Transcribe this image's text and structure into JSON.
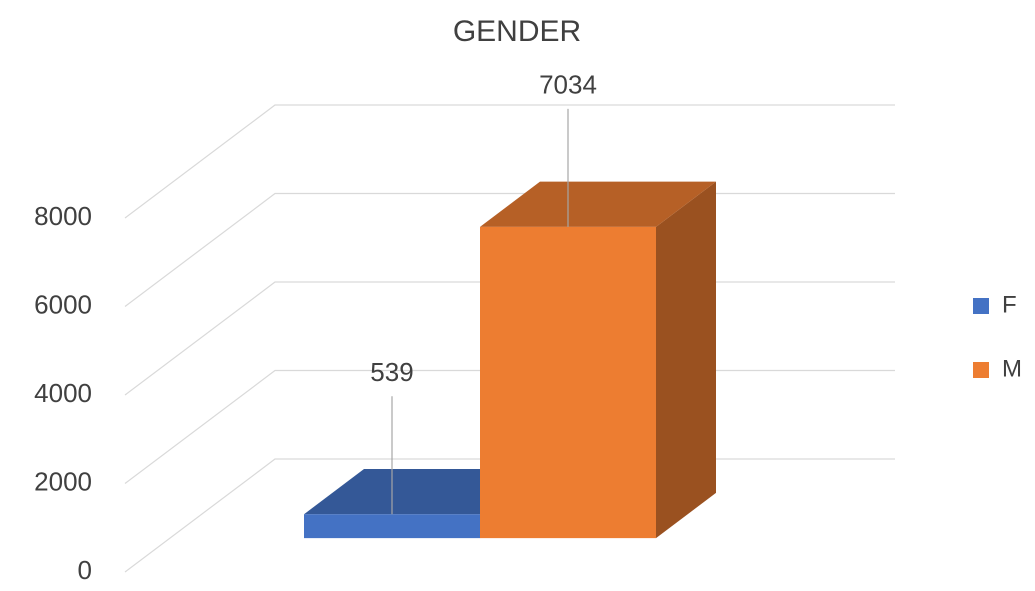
{
  "chart_data": {
    "type": "bar3d",
    "title": "GENDER",
    "categories": [
      null
    ],
    "series": [
      {
        "name": "F",
        "color": "#4472c4",
        "values": [
          539
        ]
      },
      {
        "name": "M",
        "color": "#ed7d31",
        "values": [
          7034
        ]
      }
    ],
    "ylim": [
      0,
      8000
    ],
    "yticks": [
      0,
      2000,
      4000,
      6000,
      8000
    ],
    "grid": true,
    "legend": "right"
  }
}
